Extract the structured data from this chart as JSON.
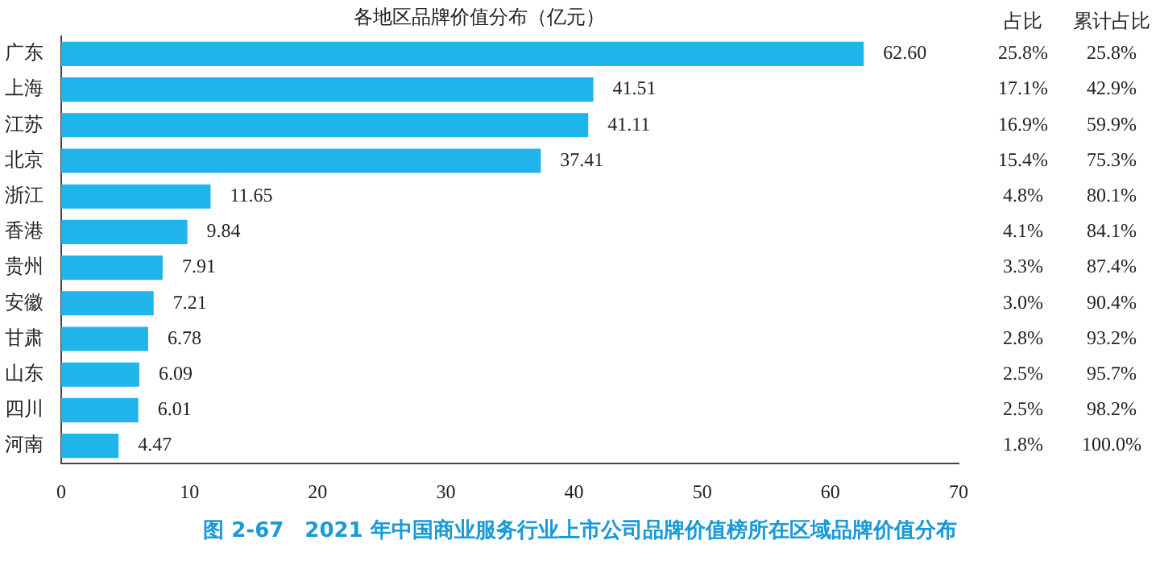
{
  "chart_data": {
    "type": "bar",
    "orientation": "horizontal",
    "title": "各地区品牌价值分布（亿元）",
    "categories": [
      "广东",
      "上海",
      "江苏",
      "北京",
      "浙江",
      "香港",
      "贵州",
      "安徽",
      "甘肃",
      "山东",
      "四川",
      "河南"
    ],
    "values": [
      62.6,
      41.51,
      41.11,
      37.41,
      11.65,
      9.84,
      7.91,
      7.21,
      6.78,
      6.09,
      6.01,
      4.47
    ],
    "value_labels": [
      "62.60",
      "41.51",
      "41.11",
      "37.41",
      "11.65",
      "9.84",
      "7.91",
      "7.21",
      "6.78",
      "6.09",
      "6.01",
      "4.47"
    ],
    "color": "#1fb4ea",
    "xlim": [
      0,
      70
    ],
    "xticks": [
      0,
      10,
      20,
      30,
      40,
      50,
      60,
      70
    ],
    "grid": false,
    "legend": false,
    "annotations": [
      "图 2-67　2021 年中国商业服务行业上市公司品牌价值榜所在区域品牌价值分布",
      "占比",
      "累计占比",
      "25.8%",
      "25.8%",
      "17.1%",
      "42.9%",
      "16.9%",
      "59.9%",
      "15.4%",
      "75.3%",
      "4.8%",
      "80.1%",
      "4.1%",
      "84.1%",
      "3.3%",
      "87.4%",
      "3.0%",
      "90.4%",
      "2.8%",
      "93.2%",
      "2.5%",
      "95.7%",
      "2.5%",
      "98.2%",
      "1.8%",
      "100.0%"
    ]
  }
}
